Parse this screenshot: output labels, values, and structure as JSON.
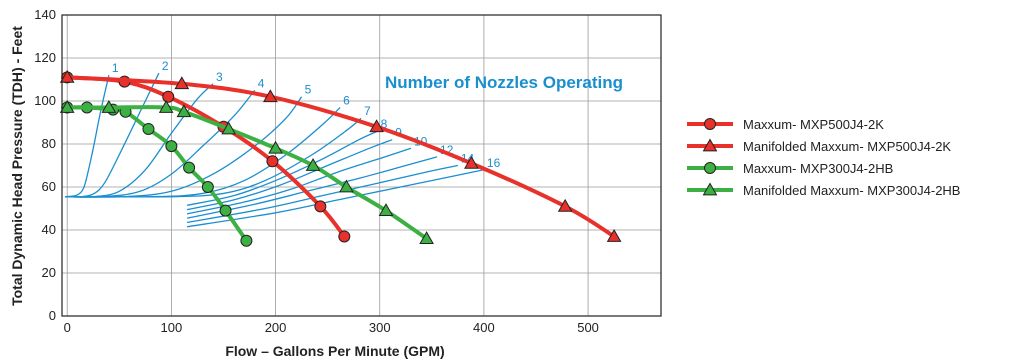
{
  "chart_data": {
    "type": "line",
    "title": "",
    "xlabel": "Flow – Gallons Per Minute (GPM)",
    "ylabel": "Total Dynamic Head Pressure (TDH) - Feet",
    "xlim": [
      -5,
      570
    ],
    "ylim": [
      0,
      140
    ],
    "x_ticks": [
      0,
      100,
      200,
      300,
      400,
      500
    ],
    "y_ticks": [
      0,
      20,
      40,
      60,
      80,
      100,
      120,
      140
    ],
    "grid": true,
    "legend_position": "right",
    "annotation": "Number of Nozzles Operating",
    "series": [
      {
        "name": "Maxxum- MXP500J4-2K",
        "color": "#e8312a",
        "marker": "circle",
        "points": [
          [
            0,
            111
          ],
          [
            55,
            109
          ],
          [
            97,
            102
          ],
          [
            150,
            88
          ],
          [
            197,
            72
          ],
          [
            243,
            51
          ],
          [
            266,
            37
          ]
        ]
      },
      {
        "name": "Manifolded Maxxum- MXP500J4-2K",
        "color": "#e8312a",
        "marker": "triangle",
        "points": [
          [
            0,
            111
          ],
          [
            110,
            108
          ],
          [
            195,
            102
          ],
          [
            297,
            88
          ],
          [
            388,
            71
          ],
          [
            478,
            51
          ],
          [
            525,
            37
          ]
        ]
      },
      {
        "name": "Maxxum- MXP300J4-2HB",
        "color": "#3cb043",
        "marker": "circle",
        "points": [
          [
            0,
            97
          ],
          [
            19,
            97
          ],
          [
            44,
            96
          ],
          [
            56,
            95
          ],
          [
            78,
            87
          ],
          [
            100,
            79
          ],
          [
            117,
            69
          ],
          [
            135,
            60
          ],
          [
            152,
            49
          ],
          [
            172,
            35
          ]
        ]
      },
      {
        "name": "Manifolded Maxxum- MXP300J4-2HB",
        "color": "#3cb043",
        "marker": "triangle",
        "points": [
          [
            0,
            97
          ],
          [
            40,
            97
          ],
          [
            95,
            97
          ],
          [
            112,
            95
          ],
          [
            155,
            87
          ],
          [
            200,
            78
          ],
          [
            236,
            70
          ],
          [
            268,
            60
          ],
          [
            306,
            49
          ],
          [
            345,
            36
          ]
        ]
      }
    ],
    "nozzle_curves": {
      "color": "#1a8fd0",
      "curves": [
        {
          "label": "1",
          "points": [
            [
              -2,
              55.5
            ],
            [
              8,
              56
            ],
            [
              14,
              58
            ],
            [
              18,
              63
            ],
            [
              25,
              78
            ],
            [
              32,
              95
            ],
            [
              40,
              112
            ]
          ]
        },
        {
          "label": "2",
          "points": [
            [
              -2,
              55.5
            ],
            [
              14,
              55.5
            ],
            [
              26,
              57
            ],
            [
              36,
              62
            ],
            [
              50,
              75
            ],
            [
              70,
              95
            ],
            [
              88,
              113
            ]
          ]
        },
        {
          "label": "3",
          "points": [
            [
              -2,
              55.5
            ],
            [
              25,
              55.5
            ],
            [
              50,
              58
            ],
            [
              75,
              68
            ],
            [
              100,
              85
            ],
            [
              125,
              101
            ],
            [
              140,
              108
            ]
          ]
        },
        {
          "label": "4",
          "points": [
            [
              -2,
              55.5
            ],
            [
              35,
              55.5
            ],
            [
              70,
              58
            ],
            [
              100,
              66
            ],
            [
              130,
              79
            ],
            [
              160,
              93
            ],
            [
              180,
              105
            ]
          ]
        },
        {
          "label": "5",
          "points": [
            [
              -2,
              55.5
            ],
            [
              55,
              55.5
            ],
            [
              100,
              58
            ],
            [
              140,
              66
            ],
            [
              180,
              79
            ],
            [
              210,
              92
            ],
            [
              225,
              102
            ]
          ]
        },
        {
          "label": "6",
          "points": [
            [
              -2,
              55.5
            ],
            [
              80,
              55.5
            ],
            [
              130,
              57
            ],
            [
              170,
              63
            ],
            [
              210,
              75
            ],
            [
              245,
              89
            ],
            [
              262,
              97
            ]
          ]
        },
        {
          "label": "7",
          "points": [
            [
              -2,
              55.5
            ],
            [
              100,
              55.5
            ],
            [
              150,
              57
            ],
            [
              190,
              63
            ],
            [
              235,
              75
            ],
            [
              270,
              87
            ],
            [
              282,
              92
            ]
          ]
        },
        {
          "label": "8",
          "points": [
            [
              115,
              51.5
            ],
            [
              160,
              56
            ],
            [
              200,
              63
            ],
            [
              245,
              73
            ],
            [
              280,
              82
            ],
            [
              298,
              86
            ]
          ]
        },
        {
          "label": "9",
          "points": [
            [
              115,
              49.5
            ],
            [
              160,
              54
            ],
            [
              205,
              61
            ],
            [
              250,
              70
            ],
            [
              290,
              78
            ],
            [
              312,
              82
            ]
          ]
        },
        {
          "label": "10",
          "points": [
            [
              115,
              47.5
            ],
            [
              170,
              53
            ],
            [
              215,
              59
            ],
            [
              260,
              67
            ],
            [
              305,
              74
            ],
            [
              330,
              78
            ]
          ]
        },
        {
          "label": "12",
          "points": [
            [
              115,
              45.5
            ],
            [
              180,
              52
            ],
            [
              230,
              58
            ],
            [
              280,
              64
            ],
            [
              325,
              70
            ],
            [
              355,
              74
            ]
          ]
        },
        {
          "label": "14",
          "points": [
            [
              115,
              43.5
            ],
            [
              190,
              50
            ],
            [
              245,
              56
            ],
            [
              300,
              62
            ],
            [
              345,
              67
            ],
            [
              375,
              70
            ]
          ]
        },
        {
          "label": "16",
          "points": [
            [
              115,
              41.5
            ],
            [
              200,
              48
            ],
            [
              260,
              54
            ],
            [
              320,
              60
            ],
            [
              370,
              65
            ],
            [
              400,
              68
            ]
          ]
        }
      ]
    }
  }
}
